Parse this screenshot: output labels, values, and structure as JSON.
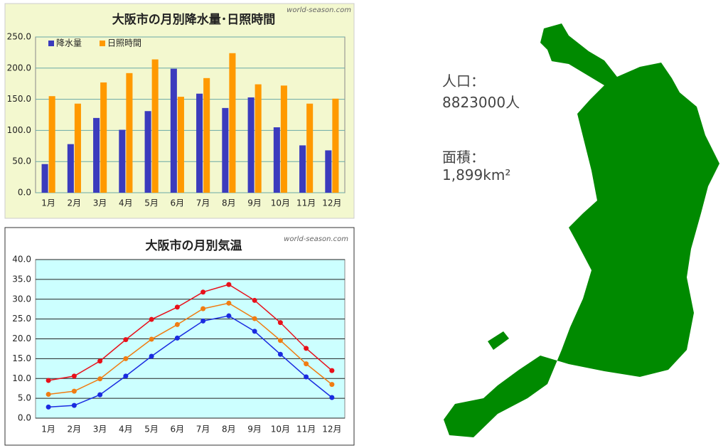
{
  "chart_data": [
    {
      "type": "bar",
      "title": "大阪市の月別降水量･日照時間",
      "source": "world-season.com",
      "categories": [
        "1月",
        "2月",
        "3月",
        "4月",
        "5月",
        "6月",
        "7月",
        "8月",
        "9月",
        "10月",
        "11月",
        "12月"
      ],
      "series": [
        {
          "name": "降水量",
          "color": "#3b3bbd",
          "values": [
            46,
            78,
            120,
            101,
            131,
            199,
            159,
            136,
            153,
            105,
            76,
            68
          ]
        },
        {
          "name": "日照時間",
          "color": "#ff9900",
          "values": [
            155,
            143,
            177,
            192,
            214,
            154,
            184,
            224,
            174,
            172,
            143,
            151
          ]
        }
      ],
      "ylim": [
        0,
        250
      ],
      "yticks": [
        {
          "value": 0,
          "label": "0.0"
        },
        {
          "value": 50,
          "label": "50.0"
        },
        {
          "value": 100,
          "label": "100.0"
        },
        {
          "value": 150,
          "label": "150.0"
        },
        {
          "value": 200,
          "label": "200.0"
        },
        {
          "value": 250,
          "label": "250.0"
        }
      ],
      "grid": true
    },
    {
      "type": "line",
      "title": "大阪市の月別気温",
      "source": "world-season.com",
      "categories": [
        "1月",
        "2月",
        "3月",
        "4月",
        "5月",
        "6月",
        "7月",
        "8月",
        "9月",
        "10月",
        "11月",
        "12月"
      ],
      "series": [
        {
          "color": "#e8101a",
          "values": [
            9.5,
            10.6,
            14.4,
            19.8,
            24.9,
            28.0,
            31.8,
            33.7,
            29.7,
            24.1,
            17.6,
            12.0
          ]
        },
        {
          "color": "#f07c12",
          "values": [
            6.0,
            6.8,
            9.9,
            15.0,
            19.9,
            23.6,
            27.6,
            29.0,
            25.1,
            19.6,
            13.7,
            8.5
          ]
        },
        {
          "color": "#1a2be0",
          "values": [
            2.8,
            3.2,
            5.9,
            10.6,
            15.6,
            20.2,
            24.5,
            25.8,
            21.9,
            16.1,
            10.4,
            5.2
          ]
        }
      ],
      "ylim": [
        0,
        40
      ],
      "yticks": [
        {
          "value": 0,
          "label": "0.0"
        },
        {
          "value": 5,
          "label": "5.0"
        },
        {
          "value": 10,
          "label": "10.0"
        },
        {
          "value": 15,
          "label": "15.0"
        },
        {
          "value": 20,
          "label": "20.0"
        },
        {
          "value": 25,
          "label": "25.0"
        },
        {
          "value": 30,
          "label": "30.0"
        },
        {
          "value": 35,
          "label": "35.0"
        },
        {
          "value": 40,
          "label": "40.0"
        }
      ],
      "grid": true
    }
  ],
  "info": {
    "population_label": "人口：",
    "population": "8823000人",
    "area_label": "面積：",
    "area": "1,899km²"
  }
}
